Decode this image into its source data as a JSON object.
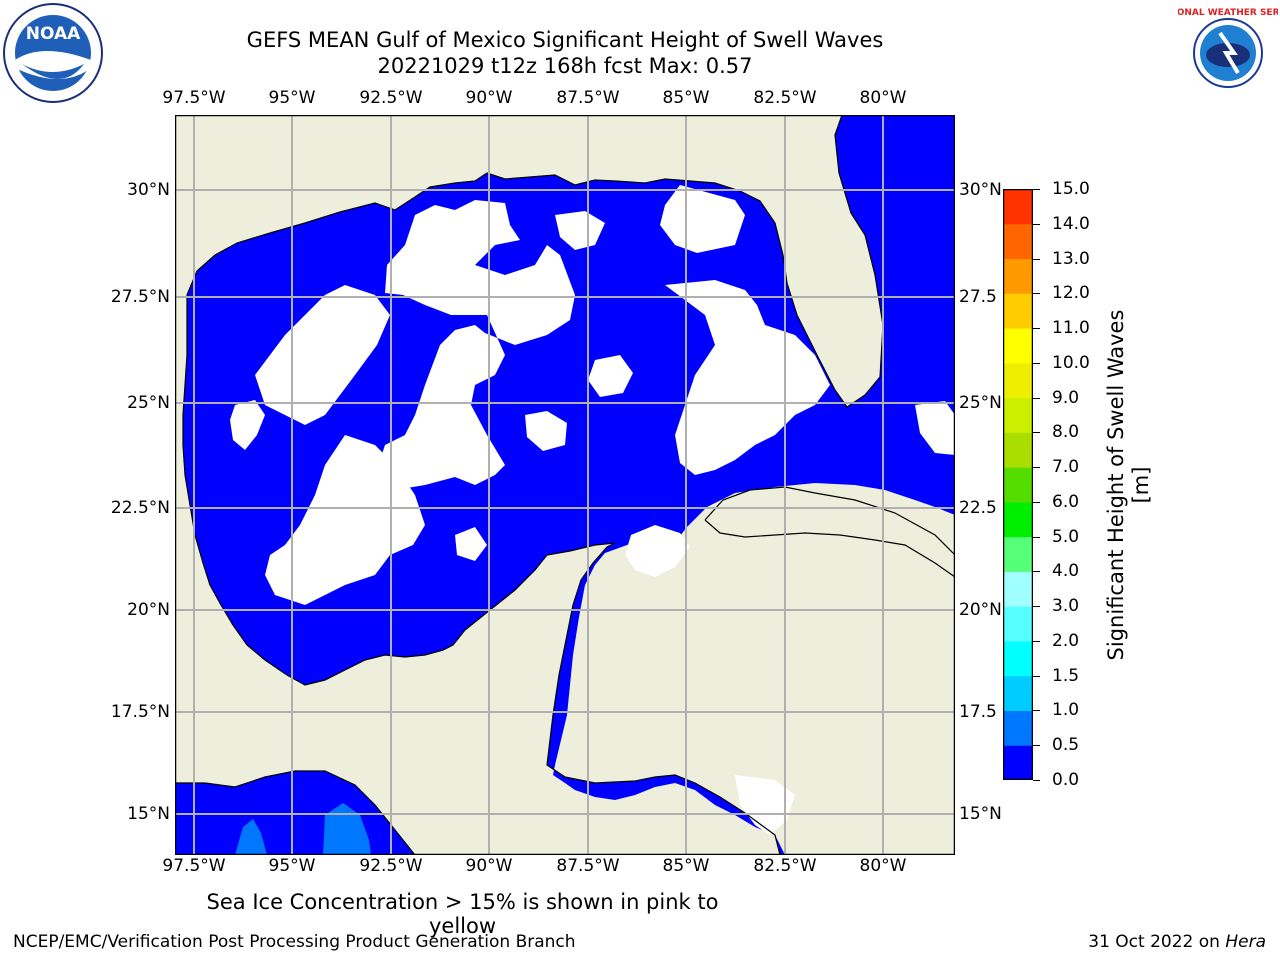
{
  "title_line1": "GEFS MEAN Gulf of Mexico Significant Height of Swell Waves",
  "title_line2": "20221029 t12z 168h fcst   Max: 0.57",
  "lon_ticks": [
    "97.5°W",
    "95°W",
    "92.5°W",
    "90°W",
    "87.5°W",
    "85°W",
    "82.5°W",
    "80°W"
  ],
  "lat_ticks": [
    "30°N",
    "27.5°N",
    "25°N",
    "22.5°N",
    "20°N",
    "17.5°N",
    "15°N"
  ],
  "lat_ticks_right": [
    "30°N",
    "27.5",
    "25°N",
    "22.5",
    "20°N",
    "17.5",
    "15°N"
  ],
  "colorbar": {
    "title": "Significant Height of Swell Waves [m]",
    "tick_labels": [
      "0.0",
      "0.5",
      "1.0",
      "1.5",
      "2.0",
      "3.0",
      "4.0",
      "5.0",
      "6.0",
      "7.0",
      "8.0",
      "9.0",
      "10.0",
      "11.0",
      "12.0",
      "13.0",
      "14.0",
      "15.0"
    ],
    "colors": [
      "#0000ff",
      "#0077ff",
      "#00ccff",
      "#00ffff",
      "#55ffff",
      "#a0ffff",
      "#55ff77",
      "#00ee00",
      "#55dd00",
      "#aadd00",
      "#ccee00",
      "#eeee00",
      "#ffff00",
      "#ffcc00",
      "#ff9900",
      "#ff6600",
      "#ff3300",
      "#ff0000"
    ]
  },
  "map": {
    "land_color": "#eeeedd",
    "sea_color": "#0000ff",
    "low_value_color": "#ffffff",
    "accent_patch_color": "#0077ff",
    "grid_color": "#b0b0b0"
  },
  "footer_note": "Sea Ice Concentration > 15% is shown in pink to yellow",
  "footer_left": "NCEP/EMC/Verification Post Processing Product Generation Branch",
  "footer_right_prefix": "31 Oct 2022 on ",
  "footer_right_host": "Hera",
  "logos": {
    "left_text": "NOAA",
    "right_text": "NATIONAL WEATHER SERVICE"
  }
}
